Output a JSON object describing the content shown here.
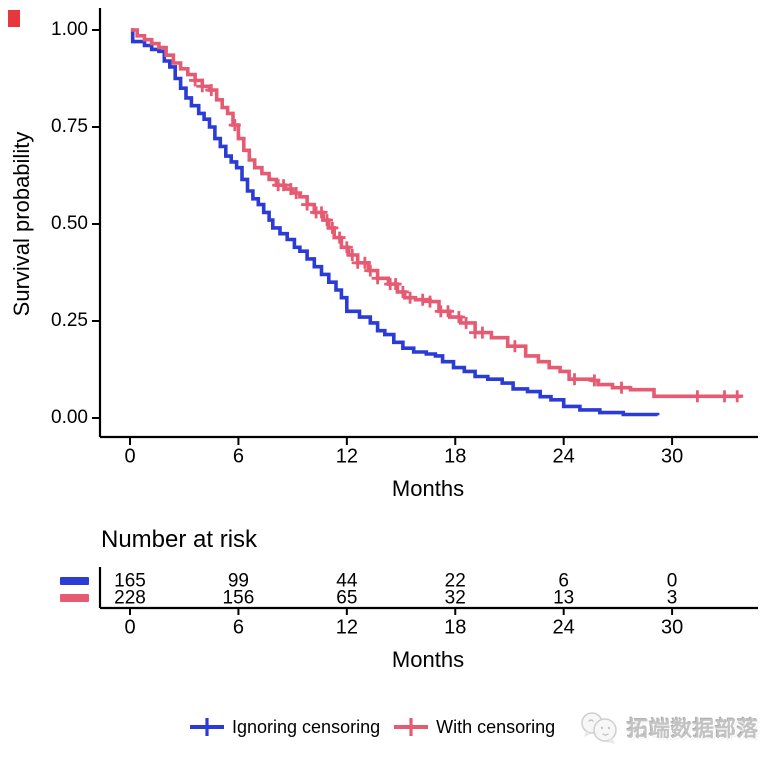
{
  "chart_data": {
    "type": "line",
    "subtype": "kaplan-meier-step",
    "title": "",
    "xlabel": "Months",
    "ylabel": "Survival probability",
    "xlim": [
      0,
      34.5
    ],
    "ylim": [
      0,
      1.0
    ],
    "grid": false,
    "legend_position": "bottom",
    "x_ticks": [
      {
        "v": 0,
        "label": "0"
      },
      {
        "v": 6,
        "label": "6"
      },
      {
        "v": 12,
        "label": "12"
      },
      {
        "v": 18,
        "label": "18"
      },
      {
        "v": 24,
        "label": "24"
      },
      {
        "v": 30,
        "label": "30"
      }
    ],
    "y_ticks": [
      {
        "v": 0.0,
        "label": "0.00"
      },
      {
        "v": 0.25,
        "label": "0.25"
      },
      {
        "v": 0.5,
        "label": "0.50"
      },
      {
        "v": 0.75,
        "label": "0.75"
      },
      {
        "v": 1.0,
        "label": "1.00"
      }
    ],
    "series": [
      {
        "name": "Ignoring censoring",
        "color": "#2b3bd5",
        "censor_times": [],
        "points": [
          [
            0.05,
            1.0
          ],
          [
            0.15,
            0.97
          ],
          [
            0.8,
            0.96
          ],
          [
            1.2,
            0.95
          ],
          [
            1.6,
            0.945
          ],
          [
            1.9,
            0.92
          ],
          [
            2.2,
            0.905
          ],
          [
            2.5,
            0.875
          ],
          [
            2.8,
            0.85
          ],
          [
            3.1,
            0.825
          ],
          [
            3.4,
            0.805
          ],
          [
            3.8,
            0.785
          ],
          [
            4.1,
            0.77
          ],
          [
            4.4,
            0.75
          ],
          [
            4.7,
            0.72
          ],
          [
            5.0,
            0.7
          ],
          [
            5.3,
            0.675
          ],
          [
            5.6,
            0.66
          ],
          [
            5.9,
            0.645
          ],
          [
            6.2,
            0.615
          ],
          [
            6.5,
            0.585
          ],
          [
            6.8,
            0.565
          ],
          [
            7.1,
            0.55
          ],
          [
            7.4,
            0.53
          ],
          [
            7.7,
            0.51
          ],
          [
            7.9,
            0.49
          ],
          [
            8.3,
            0.475
          ],
          [
            8.7,
            0.46
          ],
          [
            9.1,
            0.44
          ],
          [
            9.4,
            0.43
          ],
          [
            9.8,
            0.41
          ],
          [
            10.2,
            0.39
          ],
          [
            10.6,
            0.37
          ],
          [
            11.0,
            0.35
          ],
          [
            11.4,
            0.33
          ],
          [
            11.7,
            0.31
          ],
          [
            12.0,
            0.275
          ],
          [
            12.7,
            0.26
          ],
          [
            13.3,
            0.245
          ],
          [
            13.7,
            0.225
          ],
          [
            14.1,
            0.215
          ],
          [
            14.6,
            0.195
          ],
          [
            15.1,
            0.18
          ],
          [
            15.7,
            0.17
          ],
          [
            16.4,
            0.165
          ],
          [
            16.9,
            0.16
          ],
          [
            17.3,
            0.145
          ],
          [
            17.9,
            0.13
          ],
          [
            18.5,
            0.12
          ],
          [
            19.1,
            0.107
          ],
          [
            19.8,
            0.1
          ],
          [
            20.6,
            0.09
          ],
          [
            21.2,
            0.075
          ],
          [
            22.0,
            0.068
          ],
          [
            22.7,
            0.055
          ],
          [
            23.3,
            0.047
          ],
          [
            24.0,
            0.03
          ],
          [
            24.9,
            0.021
          ],
          [
            26.0,
            0.014
          ],
          [
            27.3,
            0.009
          ],
          [
            29.2,
            0.007
          ]
        ]
      },
      {
        "name": "With censoring",
        "color": "#e65a72",
        "censor_times": [
          3.6,
          4.0,
          4.5,
          5.8,
          8.2,
          8.5,
          8.9,
          9.2,
          9.8,
          10.3,
          10.6,
          10.9,
          11.2,
          11.6,
          12.0,
          12.3,
          12.6,
          13.0,
          13.3,
          13.7,
          14.4,
          14.7,
          15.1,
          15.5,
          16.2,
          16.6,
          17.2,
          17.6,
          18.2,
          18.6,
          19.1,
          19.5,
          21.3,
          24.6,
          25.7,
          27.2,
          31.4,
          32.9,
          33.6
        ],
        "points": [
          [
            0.05,
            1.0
          ],
          [
            0.4,
            0.985
          ],
          [
            0.8,
            0.975
          ],
          [
            1.2,
            0.965
          ],
          [
            1.6,
            0.955
          ],
          [
            2.0,
            0.935
          ],
          [
            2.4,
            0.915
          ],
          [
            2.8,
            0.9
          ],
          [
            3.2,
            0.885
          ],
          [
            3.6,
            0.87
          ],
          [
            4.0,
            0.855
          ],
          [
            4.4,
            0.845
          ],
          [
            4.8,
            0.82
          ],
          [
            5.1,
            0.8
          ],
          [
            5.4,
            0.785
          ],
          [
            5.7,
            0.755
          ],
          [
            6.0,
            0.72
          ],
          [
            6.3,
            0.69
          ],
          [
            6.6,
            0.665
          ],
          [
            6.9,
            0.645
          ],
          [
            7.3,
            0.63
          ],
          [
            7.7,
            0.615
          ],
          [
            8.1,
            0.6
          ],
          [
            8.6,
            0.59
          ],
          [
            9.0,
            0.58
          ],
          [
            9.4,
            0.57
          ],
          [
            9.8,
            0.55
          ],
          [
            10.2,
            0.53
          ],
          [
            10.7,
            0.51
          ],
          [
            11.0,
            0.49
          ],
          [
            11.3,
            0.465
          ],
          [
            11.7,
            0.44
          ],
          [
            12.1,
            0.42
          ],
          [
            12.6,
            0.4
          ],
          [
            13.2,
            0.38
          ],
          [
            13.7,
            0.36
          ],
          [
            14.3,
            0.345
          ],
          [
            14.8,
            0.325
          ],
          [
            15.2,
            0.31
          ],
          [
            15.8,
            0.305
          ],
          [
            16.6,
            0.3
          ],
          [
            17.1,
            0.275
          ],
          [
            17.7,
            0.26
          ],
          [
            18.3,
            0.245
          ],
          [
            19.1,
            0.22
          ],
          [
            20.0,
            0.207
          ],
          [
            20.9,
            0.185
          ],
          [
            21.9,
            0.16
          ],
          [
            22.6,
            0.145
          ],
          [
            23.2,
            0.13
          ],
          [
            23.8,
            0.12
          ],
          [
            24.3,
            0.1
          ],
          [
            25.6,
            0.097
          ],
          [
            25.9,
            0.086
          ],
          [
            26.7,
            0.078
          ],
          [
            27.7,
            0.073
          ],
          [
            29.0,
            0.056
          ],
          [
            33.8,
            0.052
          ]
        ]
      }
    ]
  },
  "risk_table": {
    "title": "Number at risk",
    "xlabel": "Months",
    "times": [
      0,
      6,
      12,
      18,
      24,
      30
    ],
    "rows": [
      {
        "group": "Ignoring censoring",
        "color": "#2b3bd5",
        "counts": [
          "165",
          "99",
          "44",
          "22",
          "6",
          "0"
        ]
      },
      {
        "group": "With censoring",
        "color": "#e65a72",
        "counts": [
          "228",
          "156",
          "65",
          "32",
          "13",
          "3"
        ]
      }
    ]
  },
  "legend": {
    "items": [
      {
        "label": "Ignoring censoring",
        "color": "#2b3bd5"
      },
      {
        "label": "With censoring",
        "color": "#e65a72"
      }
    ]
  },
  "watermark": {
    "text": "拓端数据部落"
  },
  "decor": {
    "corner_mark_color": "#e8363d"
  }
}
